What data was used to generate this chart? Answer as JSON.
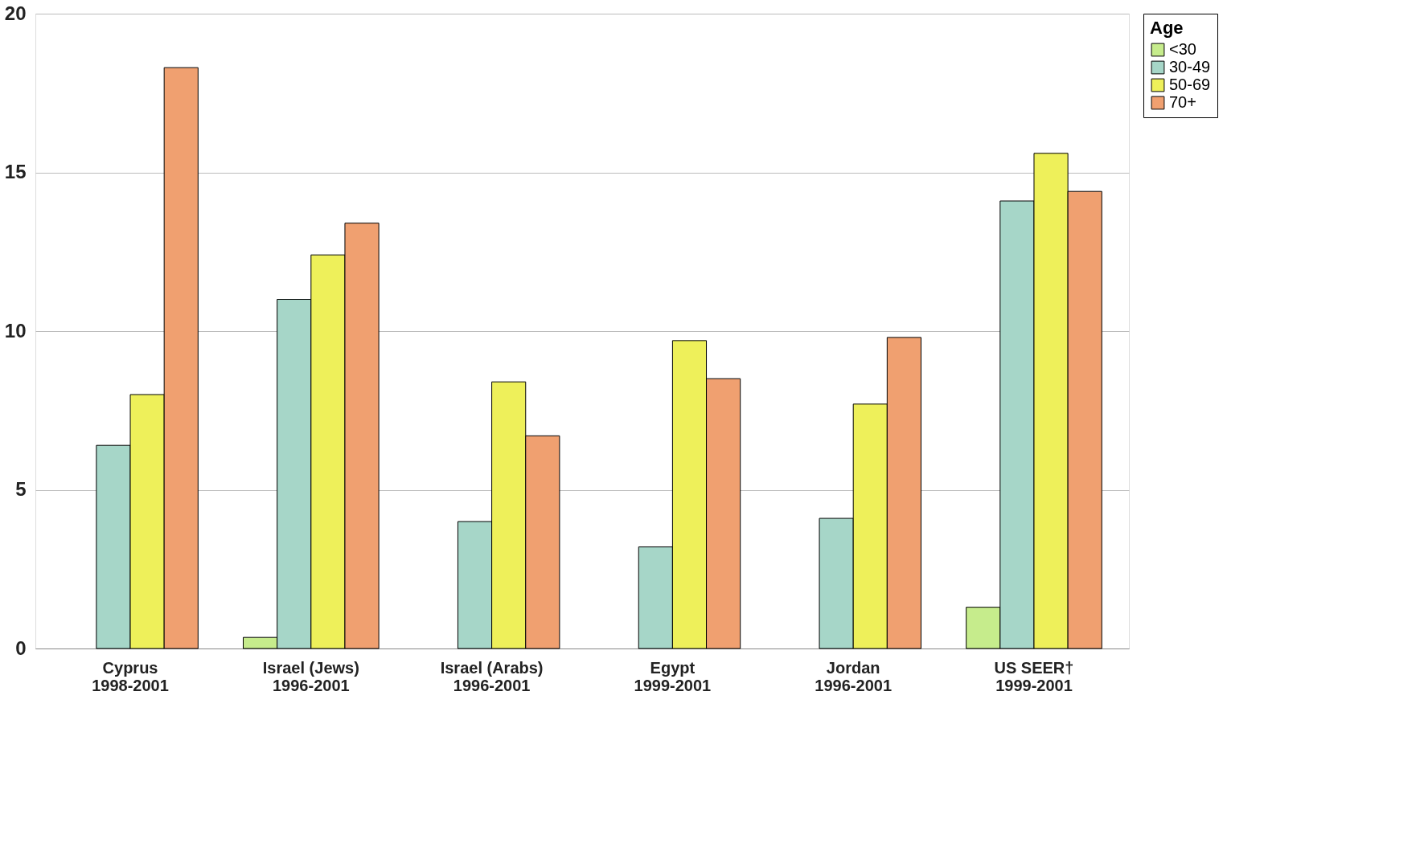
{
  "chart_data": {
    "type": "bar",
    "categories": [
      "Cyprus\n1998-2001",
      "Israel (Jews)\n1996-2001",
      "Israel (Arabs)\n1996-2001",
      "Egypt\n1999-2001",
      "Jordan\n1996-2001",
      "US SEER†\n1999-2001"
    ],
    "series": [
      {
        "name": "<30",
        "color": "#c6ec8c",
        "values": [
          null,
          0.35,
          null,
          null,
          null,
          1.3
        ]
      },
      {
        "name": "30-49",
        "color": "#a6d6c8",
        "values": [
          6.4,
          11.0,
          4.0,
          3.2,
          4.1,
          14.1
        ]
      },
      {
        "name": "50-69",
        "color": "#eef05a",
        "values": [
          8.0,
          12.4,
          8.4,
          9.7,
          7.7,
          15.6
        ]
      },
      {
        "name": "70+",
        "color": "#f0a070",
        "values": [
          18.3,
          13.4,
          6.7,
          8.5,
          9.8,
          14.4
        ]
      }
    ],
    "legend_title": "Age",
    "legend": "right",
    "ylim": [
      0,
      20
    ],
    "yticks": [
      0,
      5,
      10,
      15,
      20
    ],
    "grid": "y"
  }
}
